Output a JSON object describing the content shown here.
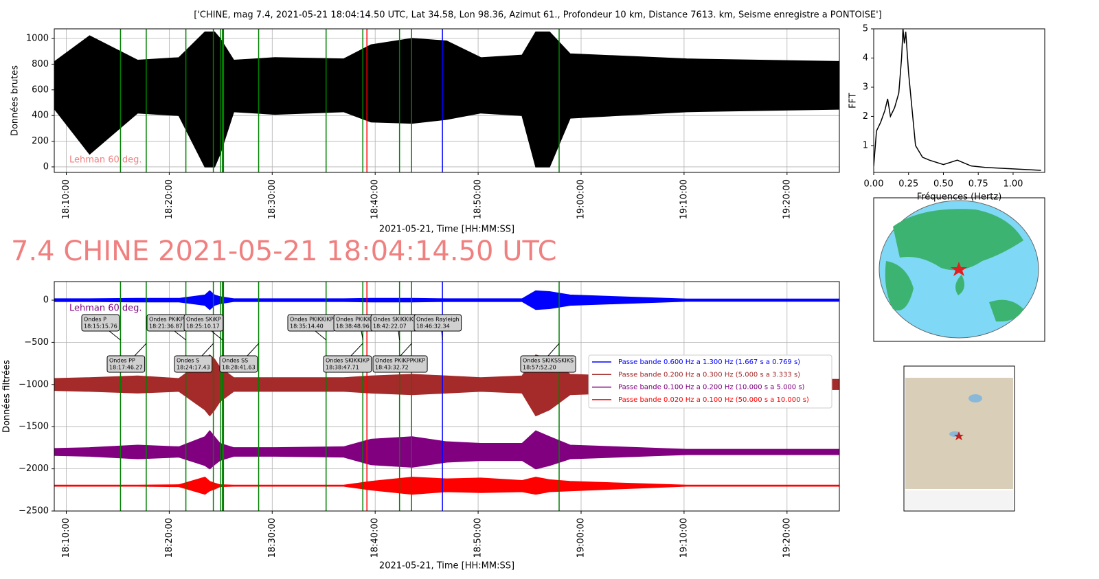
{
  "heading": "7.4 CHINE 2021-05-21 18:04:14.50 UTC",
  "chart_data": [
    {
      "type": "band",
      "title": "['CHINE, mag 7.4, 2021-05-21 18:04:14.50 UTC, Lat 34.58, Lon 98.36, Azimut 61., Profondeur 10 km, Distance 7613. km, Seisme enregistre a PONTOISE']",
      "x_label": "2021-05-21, Time [HH:MM:SS]",
      "y_label": "Données brutes",
      "annotation": "Lehman 60 deg.",
      "annotation_color": "#f08080",
      "grid": true,
      "xlim": [
        65330,
        69905
      ],
      "ylim": [
        -43,
        1075
      ],
      "xticks": [
        {
          "value": 65400,
          "label": "18:10:00"
        },
        {
          "value": 66000,
          "label": "18:20:00"
        },
        {
          "value": 66600,
          "label": "18:30:00"
        },
        {
          "value": 67200,
          "label": "18:40:00"
        },
        {
          "value": 67800,
          "label": "18:50:00"
        },
        {
          "value": 68400,
          "label": "19:00:00"
        },
        {
          "value": 69000,
          "label": "19:10:00"
        },
        {
          "value": 69600,
          "label": "19:20:00"
        }
      ],
      "yticks": [
        0,
        200,
        400,
        600,
        800,
        1000
      ],
      "vlines": [
        {
          "x": 65716,
          "color": "#008000"
        },
        {
          "x": 65866,
          "color": "#008000"
        },
        {
          "x": 66097,
          "color": "#008000"
        },
        {
          "x": 66257,
          "color": "#008000"
        },
        {
          "x": 66300,
          "color": "#008000"
        },
        {
          "x": 66310,
          "color": "#008000"
        },
        {
          "x": 66316,
          "color": "#008000"
        },
        {
          "x": 66521,
          "color": "#008000"
        },
        {
          "x": 66914,
          "color": "#008000"
        },
        {
          "x": 67128,
          "color": "#008000"
        },
        {
          "x": 67152,
          "color": "#ff0000"
        },
        {
          "x": 67342,
          "color": "#008000"
        },
        {
          "x": 67412,
          "color": "#008000"
        },
        {
          "x": 67592,
          "color": "#0000ff"
        },
        {
          "x": 68272,
          "color": "#008000"
        }
      ],
      "x": [
        65332,
        65536,
        65816,
        66056,
        66208,
        66236,
        66264,
        66296,
        66376,
        66616,
        67016,
        67176,
        67416,
        67616,
        67816,
        68056,
        68136,
        68216,
        68336,
        69016,
        69904
      ],
      "series": [
        {
          "color": "#000000",
          "upper": [
            820,
            1020,
            830,
            850,
            1050,
            1050,
            1050,
            1000,
            830,
            850,
            840,
            950,
            1000,
            980,
            850,
            870,
            1050,
            1050,
            880,
            840,
            820
          ],
          "lower": [
            450,
            100,
            420,
            400,
            0,
            0,
            0,
            100,
            430,
            410,
            430,
            350,
            340,
            370,
            420,
            400,
            0,
            0,
            380,
            430,
            450
          ]
        }
      ]
    },
    {
      "type": "line",
      "x_label": "Fréquences (Hertz)",
      "y_label": "FFT",
      "grid": false,
      "color": "#000000",
      "xlim": [
        0,
        1.227
      ],
      "ylim": [
        0.08,
        5
      ],
      "xticks": [
        {
          "value": 0,
          "label": "0.00"
        },
        0.25,
        {
          "value": 0.5,
          "label": "0.50"
        },
        0.75,
        {
          "value": 1,
          "label": "1.00"
        }
      ],
      "yticks": [
        1,
        2,
        3,
        4,
        5
      ],
      "x": [
        0,
        0.02,
        0.05,
        0.08,
        0.1,
        0.12,
        0.15,
        0.18,
        0.2,
        0.21,
        0.22,
        0.23,
        0.25,
        0.28,
        0.3,
        0.35,
        0.4,
        0.5,
        0.6,
        0.7,
        0.8,
        1.0,
        1.2
      ],
      "values": [
        0.3,
        1.5,
        1.8,
        2.2,
        2.6,
        2.0,
        2.3,
        2.8,
        4.0,
        5.0,
        4.5,
        4.9,
        3.5,
        2.0,
        1.0,
        0.6,
        0.5,
        0.35,
        0.5,
        0.3,
        0.25,
        0.2,
        0.15
      ]
    },
    {
      "type": "band",
      "x_label": "2021-05-21, Time [HH:MM:SS]",
      "y_label": "Données filtrées",
      "annotation": "Lehman 60 deg.",
      "annotation_color": "#800080",
      "grid": true,
      "xlim": [
        65330,
        69905
      ],
      "ylim": [
        -2500,
        220
      ],
      "xticks": [
        {
          "value": 65400,
          "label": "18:10:00"
        },
        {
          "value": 66000,
          "label": "18:20:00"
        },
        {
          "value": 66600,
          "label": "18:30:00"
        },
        {
          "value": 67200,
          "label": "18:40:00"
        },
        {
          "value": 67800,
          "label": "18:50:00"
        },
        {
          "value": 68400,
          "label": "19:00:00"
        },
        {
          "value": 69000,
          "label": "19:10:00"
        },
        {
          "value": 69600,
          "label": "19:20:00"
        }
      ],
      "yticks": [
        0,
        {
          "value": -500,
          "label": "−500"
        },
        {
          "value": -1000,
          "label": "−1000"
        },
        {
          "value": -1500,
          "label": "−1500"
        },
        {
          "value": -2000,
          "label": "−2000"
        },
        {
          "value": -2500,
          "label": "−2500"
        }
      ],
      "vlines": [
        {
          "x": 65716,
          "color": "#008000"
        },
        {
          "x": 65866,
          "color": "#008000"
        },
        {
          "x": 66097,
          "color": "#008000"
        },
        {
          "x": 66257,
          "color": "#008000"
        },
        {
          "x": 66300,
          "color": "#008000"
        },
        {
          "x": 66310,
          "color": "#008000"
        },
        {
          "x": 66316,
          "color": "#008000"
        },
        {
          "x": 66521,
          "color": "#008000"
        },
        {
          "x": 66914,
          "color": "#008000"
        },
        {
          "x": 67128,
          "color": "#008000"
        },
        {
          "x": 67152,
          "color": "#ff0000"
        },
        {
          "x": 67342,
          "color": "#008000"
        },
        {
          "x": 67412,
          "color": "#008000"
        },
        {
          "x": 67592,
          "color": "#0000ff"
        },
        {
          "x": 68272,
          "color": "#008000"
        }
      ],
      "phases": [
        {
          "label": "Ondes P",
          "time": "18:15:15.76",
          "x": 65715.76
        },
        {
          "label": "Ondes PP",
          "time": "18:17:46.27",
          "x": 65866.27
        },
        {
          "label": "Ondes PKiKP",
          "time": "18:21:36.87",
          "x": 66096.87
        },
        {
          "label": "Ondes S",
          "time": "18:24:17.43",
          "x": 66257.43
        },
        {
          "label": "Ondes SKiKP",
          "time": "18:25:10.17",
          "x": 66310.17
        },
        {
          "label": "Ondes SS",
          "time": "18:28:41.63",
          "x": 66521.63
        },
        {
          "label": "Ondes PKIKKIKP",
          "time": "18:35:14.40",
          "x": 66914.4
        },
        {
          "label": "Ondes PKIKKIKS",
          "time": "18:38:48.96",
          "x": 67128.96
        },
        {
          "label": "Ondes SKIKKIKP",
          "time": "18:38:47.71",
          "x": 67127.71
        },
        {
          "label": "Ondes SKIKKIKS",
          "time": "18:42:22.07",
          "x": 67342.07
        },
        {
          "label": "Ondes PKIKPPKIKP",
          "time": "18:43:32.72",
          "x": 67412.72
        },
        {
          "label": "Ondes Rayleigh",
          "time": "18:46:32.34",
          "x": 67592.34
        },
        {
          "label": "Ondes SKIKSSKIKS",
          "time": "18:57:52.20",
          "x": 68272.2
        }
      ],
      "x": [
        65332,
        65536,
        65816,
        66056,
        66208,
        66236,
        66264,
        66296,
        66376,
        66616,
        67016,
        67176,
        67416,
        67616,
        67816,
        68056,
        68136,
        68216,
        68336,
        69016,
        69904
      ],
      "series": [
        {
          "name": "Passe bande 0.600 Hz a 1.300 Hz (1.667 s a 0.769 s)",
          "color": "#0000ff",
          "upper": [
            15,
            15,
            20,
            20,
            60,
            110,
            60,
            40,
            15,
            15,
            15,
            20,
            20,
            15,
            15,
            15,
            110,
            100,
            60,
            12,
            12
          ],
          "lower": [
            -15,
            -15,
            -20,
            -20,
            -60,
            -110,
            -60,
            -40,
            -15,
            -15,
            -15,
            -20,
            -20,
            -15,
            -15,
            -15,
            -110,
            -100,
            -60,
            -12,
            -12
          ]
        },
        {
          "name": "Passe bande 0.200 Hz a 0.300 Hz (5.000 s a 3.333 s)",
          "color": "#a52a2a",
          "upper": [
            -930,
            -920,
            -900,
            -930,
            -700,
            -650,
            -700,
            -800,
            -920,
            -920,
            -920,
            -900,
            -880,
            -900,
            -920,
            -900,
            -650,
            -700,
            -880,
            -930,
            -940
          ],
          "lower": [
            -1070,
            -1080,
            -1100,
            -1080,
            -1300,
            -1370,
            -1300,
            -1200,
            -1080,
            -1080,
            -1080,
            -1100,
            -1120,
            -1100,
            -1080,
            -1100,
            -1370,
            -1300,
            -1120,
            -1070,
            -1060
          ]
        },
        {
          "name": "Passe bande 0.100 Hz a 0.200 Hz (10.000 s a 5.000 s)",
          "color": "#800080",
          "upper": [
            -1760,
            -1750,
            -1720,
            -1740,
            -1620,
            -1550,
            -1620,
            -1700,
            -1750,
            -1750,
            -1740,
            -1650,
            -1620,
            -1680,
            -1700,
            -1700,
            -1550,
            -1620,
            -1720,
            -1770,
            -1770
          ],
          "lower": [
            -1840,
            -1850,
            -1880,
            -1860,
            -1960,
            -2000,
            -1950,
            -1900,
            -1850,
            -1850,
            -1860,
            -1950,
            -1980,
            -1920,
            -1900,
            -1900,
            -2000,
            -1960,
            -1880,
            -1830,
            -1830
          ]
        },
        {
          "name": "Passe bande 0.020 Hz a 0.100 Hz (50.000 s a 10.000 s)",
          "color": "#ff0000",
          "upper": [
            -2195,
            -2195,
            -2195,
            -2190,
            -2100,
            -2150,
            -2170,
            -2190,
            -2195,
            -2195,
            -2195,
            -2150,
            -2100,
            -2120,
            -2110,
            -2140,
            -2100,
            -2130,
            -2150,
            -2195,
            -2195
          ],
          "lower": [
            -2205,
            -2205,
            -2205,
            -2210,
            -2300,
            -2260,
            -2240,
            -2210,
            -2205,
            -2205,
            -2205,
            -2250,
            -2300,
            -2270,
            -2280,
            -2270,
            -2300,
            -2270,
            -2260,
            -2205,
            -2205
          ]
        }
      ]
    }
  ]
}
